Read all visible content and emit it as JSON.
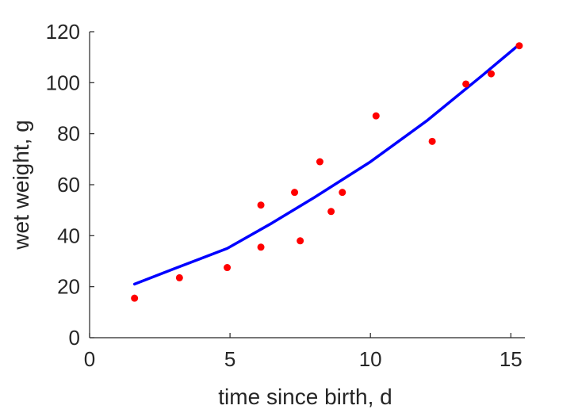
{
  "chart_data": {
    "type": "scatter",
    "title": "",
    "xlabel": "time since birth, d",
    "ylabel": "wet weight, g",
    "xlim": [
      0,
      15.5
    ],
    "ylim": [
      0,
      120
    ],
    "xticks": [
      0,
      5,
      10,
      15
    ],
    "yticks": [
      0,
      20,
      40,
      60,
      80,
      100,
      120
    ],
    "grid": false,
    "legend": "none",
    "series": [
      {
        "kind": "points",
        "color": "#ff0000",
        "x": [
          1.6,
          3.2,
          4.9,
          6.1,
          6.1,
          7.3,
          7.5,
          8.2,
          8.6,
          9.0,
          10.2,
          12.2,
          13.4,
          14.3,
          15.3
        ],
        "y": [
          15.5,
          23.5,
          27.5,
          35.5,
          52,
          57,
          38,
          69,
          49.5,
          57,
          87,
          77,
          99.5,
          103.5,
          114.5
        ]
      },
      {
        "kind": "line",
        "color": "#0000ff",
        "x": [
          1.6,
          3.0,
          4.9,
          6.5,
          8.0,
          10.0,
          12.0,
          14.0,
          15.3
        ],
        "y": [
          21,
          27,
          35,
          45,
          55,
          69,
          85,
          103,
          115
        ]
      }
    ]
  }
}
